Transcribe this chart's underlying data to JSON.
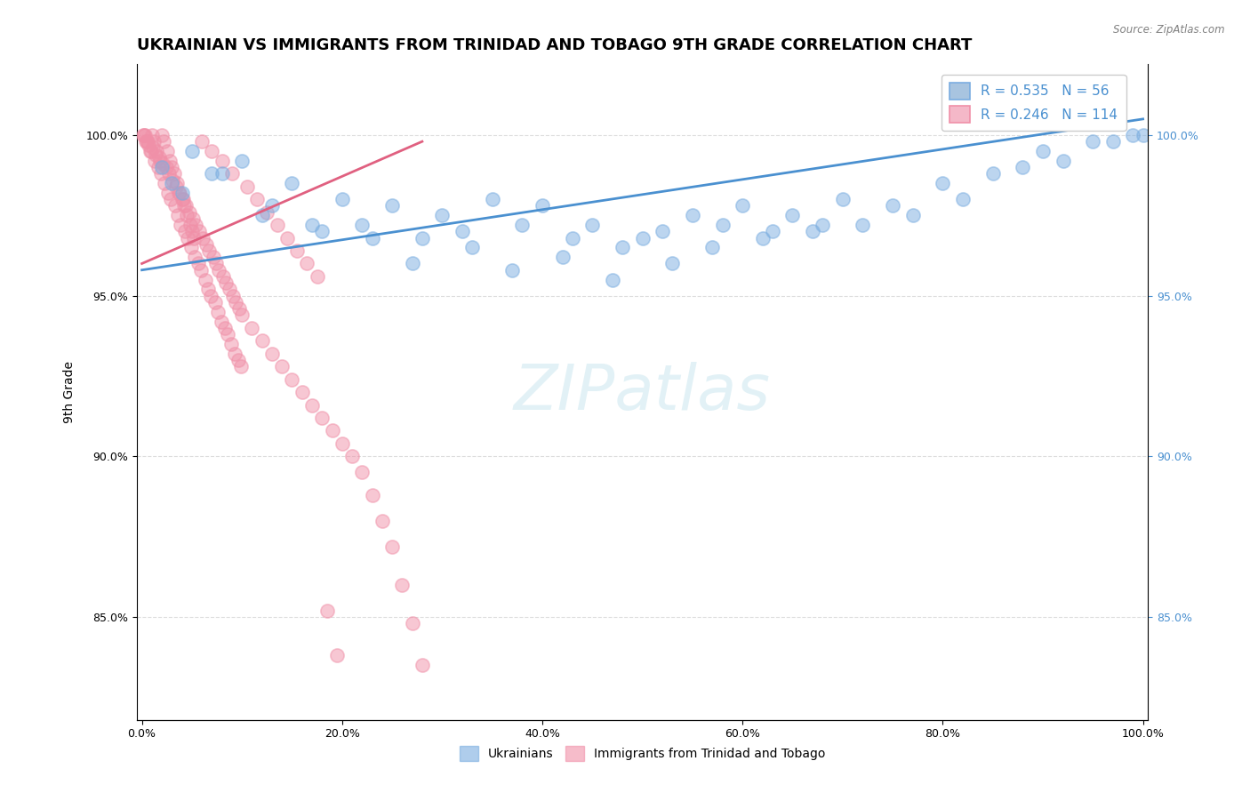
{
  "title": "UKRAINIAN VS IMMIGRANTS FROM TRINIDAD AND TOBAGO 9TH GRADE CORRELATION CHART",
  "source": "Source: ZipAtlas.com",
  "xlabel_ticks": [
    "0.0%",
    "20.0%",
    "40.0%",
    "60.0%",
    "80.0%",
    "100.0%"
  ],
  "ylabel_ticks": [
    "85.0%",
    "90.0%",
    "95.0%",
    "100.0%"
  ],
  "xlim": [
    -0.005,
    1.005
  ],
  "ylim": [
    0.818,
    1.022
  ],
  "ylabel": "9th Grade",
  "watermark": "ZIPatlas",
  "legend_blue_label": "R = 0.535   N = 56",
  "legend_pink_label": "R = 0.246   N = 114",
  "legend_blue_color": "#a8c4e0",
  "legend_pink_color": "#f4b8c8",
  "blue_scatter_color": "#7aade0",
  "pink_scatter_color": "#f090a8",
  "blue_line_color": "#4a90d0",
  "pink_line_color": "#e06080",
  "blue_points_x": [
    0.02,
    0.03,
    0.05,
    0.08,
    0.1,
    0.12,
    0.15,
    0.18,
    0.2,
    0.22,
    0.25,
    0.28,
    0.3,
    0.32,
    0.35,
    0.38,
    0.4,
    0.43,
    0.45,
    0.48,
    0.5,
    0.52,
    0.55,
    0.58,
    0.6,
    0.63,
    0.65,
    0.68,
    0.7,
    0.75,
    0.8,
    0.85,
    0.88,
    0.9,
    0.95,
    1.0,
    0.04,
    0.07,
    0.13,
    0.17,
    0.23,
    0.27,
    0.33,
    0.37,
    0.42,
    0.47,
    0.53,
    0.57,
    0.62,
    0.67,
    0.72,
    0.77,
    0.82,
    0.92,
    0.97,
    0.99
  ],
  "blue_points_y": [
    0.99,
    0.985,
    0.995,
    0.988,
    0.992,
    0.975,
    0.985,
    0.97,
    0.98,
    0.972,
    0.978,
    0.968,
    0.975,
    0.97,
    0.98,
    0.972,
    0.978,
    0.968,
    0.972,
    0.965,
    0.968,
    0.97,
    0.975,
    0.972,
    0.978,
    0.97,
    0.975,
    0.972,
    0.98,
    0.978,
    0.985,
    0.988,
    0.99,
    0.995,
    0.998,
    1.0,
    0.982,
    0.988,
    0.978,
    0.972,
    0.968,
    0.96,
    0.965,
    0.958,
    0.962,
    0.955,
    0.96,
    0.965,
    0.968,
    0.97,
    0.972,
    0.975,
    0.98,
    0.992,
    0.998,
    1.0
  ],
  "pink_points_x": [
    0.005,
    0.008,
    0.01,
    0.012,
    0.015,
    0.018,
    0.02,
    0.022,
    0.025,
    0.028,
    0.03,
    0.032,
    0.035,
    0.038,
    0.04,
    0.042,
    0.045,
    0.048,
    0.05,
    0.052,
    0.003,
    0.006,
    0.009,
    0.013,
    0.016,
    0.019,
    0.023,
    0.026,
    0.029,
    0.033,
    0.036,
    0.039,
    0.043,
    0.046,
    0.049,
    0.053,
    0.056,
    0.059,
    0.063,
    0.066,
    0.069,
    0.073,
    0.076,
    0.079,
    0.083,
    0.086,
    0.089,
    0.093,
    0.096,
    0.099,
    0.001,
    0.002,
    0.004,
    0.007,
    0.011,
    0.014,
    0.017,
    0.021,
    0.024,
    0.027,
    0.031,
    0.034,
    0.037,
    0.041,
    0.044,
    0.047,
    0.051,
    0.054,
    0.057,
    0.061,
    0.064,
    0.067,
    0.071,
    0.074,
    0.077,
    0.081,
    0.084,
    0.087,
    0.091,
    0.094,
    0.097,
    0.1,
    0.11,
    0.12,
    0.13,
    0.14,
    0.15,
    0.16,
    0.17,
    0.18,
    0.19,
    0.2,
    0.21,
    0.22,
    0.23,
    0.24,
    0.25,
    0.26,
    0.27,
    0.28,
    0.06,
    0.07,
    0.08,
    0.09,
    0.105,
    0.115,
    0.125,
    0.135,
    0.145,
    0.155,
    0.165,
    0.175,
    0.185,
    0.195
  ],
  "pink_points_y": [
    0.998,
    0.995,
    1.0,
    0.998,
    0.995,
    0.992,
    1.0,
    0.998,
    0.995,
    0.992,
    0.99,
    0.988,
    0.985,
    0.982,
    0.98,
    0.978,
    0.975,
    0.972,
    0.97,
    0.968,
    1.0,
    0.998,
    0.995,
    0.992,
    0.99,
    0.988,
    0.985,
    0.982,
    0.98,
    0.978,
    0.975,
    0.972,
    0.97,
    0.968,
    0.965,
    0.962,
    0.96,
    0.958,
    0.955,
    0.952,
    0.95,
    0.948,
    0.945,
    0.942,
    0.94,
    0.938,
    0.935,
    0.932,
    0.93,
    0.928,
    1.0,
    1.0,
    0.998,
    0.997,
    0.996,
    0.994,
    0.993,
    0.991,
    0.99,
    0.988,
    0.986,
    0.984,
    0.982,
    0.98,
    0.978,
    0.976,
    0.974,
    0.972,
    0.97,
    0.968,
    0.966,
    0.964,
    0.962,
    0.96,
    0.958,
    0.956,
    0.954,
    0.952,
    0.95,
    0.948,
    0.946,
    0.944,
    0.94,
    0.936,
    0.932,
    0.928,
    0.924,
    0.92,
    0.916,
    0.912,
    0.908,
    0.904,
    0.9,
    0.895,
    0.888,
    0.88,
    0.872,
    0.86,
    0.848,
    0.835,
    0.998,
    0.995,
    0.992,
    0.988,
    0.984,
    0.98,
    0.976,
    0.972,
    0.968,
    0.964,
    0.96,
    0.956,
    0.852,
    0.838
  ],
  "blue_line_x": [
    0.0,
    1.0
  ],
  "blue_line_y_start": 0.958,
  "blue_line_y_end": 1.005,
  "pink_line_x": [
    0.0,
    0.28
  ],
  "pink_line_y_start": 0.96,
  "pink_line_y_end": 0.998,
  "background_color": "#ffffff",
  "grid_color": "#dddddd",
  "title_fontsize": 13,
  "axis_label_fontsize": 10,
  "tick_fontsize": 9,
  "scatter_size": 120,
  "scatter_alpha": 0.5,
  "scatter_linewidth": 1.2
}
